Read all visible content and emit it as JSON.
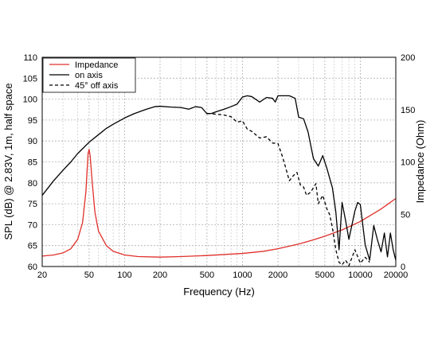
{
  "chart_data": {
    "type": "line",
    "xlabel": "Frequency (Hz)",
    "ylabel": "SPL (dB) @ 2.83V, 1m, half space",
    "y2label": "Impedance (Ohm)",
    "x_scale": "log",
    "xlim": [
      20,
      20000
    ],
    "ylim": [
      60,
      110
    ],
    "y2lim": [
      0,
      200
    ],
    "grid": true,
    "legend_position": "top-left",
    "x_ticks": [
      20,
      50,
      100,
      200,
      500,
      1000,
      2000,
      5000,
      10000,
      20000
    ],
    "x_tick_labels": [
      "20",
      "50",
      "100",
      "200",
      "500",
      "1000",
      "2000",
      "5000",
      "10000",
      "20000"
    ],
    "y_ticks": [
      60,
      65,
      70,
      75,
      80,
      85,
      90,
      95,
      100,
      105,
      110
    ],
    "y_tick_labels": [
      "60",
      "65",
      "70",
      "75",
      "80",
      "85",
      "90",
      "95",
      "100",
      "105",
      "110"
    ],
    "y2_ticks": [
      0,
      50,
      100,
      150,
      200
    ],
    "y2_tick_labels": [
      "0",
      "50",
      "100",
      "150",
      "200"
    ],
    "colors": {
      "impedance": "#e0302a",
      "on_axis": "#000000",
      "off_axis": "#000000",
      "grid": "#b0b0b0"
    },
    "series": [
      {
        "name": "Impedance",
        "axis": "right",
        "style": "solid",
        "points": [
          [
            20,
            10
          ],
          [
            25,
            11
          ],
          [
            30,
            13
          ],
          [
            35,
            17
          ],
          [
            40,
            26
          ],
          [
            44,
            42
          ],
          [
            47,
            72
          ],
          [
            49,
            108
          ],
          [
            50,
            112
          ],
          [
            51,
            106
          ],
          [
            53,
            82
          ],
          [
            56,
            52
          ],
          [
            60,
            34
          ],
          [
            70,
            20
          ],
          [
            80,
            14.5
          ],
          [
            100,
            11
          ],
          [
            130,
            9.5
          ],
          [
            200,
            9
          ],
          [
            300,
            9.5
          ],
          [
            500,
            10.5
          ],
          [
            1000,
            12.5
          ],
          [
            1500,
            14.5
          ],
          [
            2000,
            17
          ],
          [
            3000,
            21.5
          ],
          [
            4000,
            25.5
          ],
          [
            5000,
            29
          ],
          [
            7000,
            35
          ],
          [
            10000,
            43
          ],
          [
            15000,
            55
          ],
          [
            20000,
            65
          ]
        ]
      },
      {
        "name": "on axis",
        "axis": "left",
        "style": "solid",
        "points": [
          [
            20,
            77
          ],
          [
            25,
            80.5
          ],
          [
            30,
            83
          ],
          [
            35,
            85
          ],
          [
            40,
            87
          ],
          [
            50,
            89.7
          ],
          [
            60,
            91.5
          ],
          [
            70,
            93
          ],
          [
            80,
            94
          ],
          [
            100,
            95.5
          ],
          [
            120,
            96.5
          ],
          [
            150,
            97.5
          ],
          [
            180,
            98.2
          ],
          [
            200,
            98.3
          ],
          [
            250,
            98.1
          ],
          [
            300,
            98
          ],
          [
            350,
            97.6
          ],
          [
            400,
            98.2
          ],
          [
            450,
            98
          ],
          [
            500,
            96.5
          ],
          [
            550,
            96.6
          ],
          [
            600,
            97
          ],
          [
            700,
            97.6
          ],
          [
            800,
            98.2
          ],
          [
            900,
            98.8
          ],
          [
            1000,
            100.5
          ],
          [
            1100,
            100.8
          ],
          [
            1200,
            100.6
          ],
          [
            1400,
            99.3
          ],
          [
            1600,
            100.4
          ],
          [
            1800,
            100.2
          ],
          [
            1900,
            99.3
          ],
          [
            2000,
            100.8
          ],
          [
            2500,
            100.8
          ],
          [
            2800,
            100.2
          ],
          [
            3000,
            95.7
          ],
          [
            3300,
            95.3
          ],
          [
            3600,
            92.2
          ],
          [
            4000,
            85.8
          ],
          [
            4400,
            84
          ],
          [
            4800,
            86.5
          ],
          [
            5200,
            83.5
          ],
          [
            5800,
            78.8
          ],
          [
            6200,
            73
          ],
          [
            6600,
            64
          ],
          [
            7000,
            75.3
          ],
          [
            7500,
            71
          ],
          [
            8000,
            66.5
          ],
          [
            9000,
            73.3
          ],
          [
            9500,
            75.3
          ],
          [
            10000,
            74.8
          ],
          [
            11000,
            65.2
          ],
          [
            12000,
            61.5
          ],
          [
            13000,
            69.8
          ],
          [
            14000,
            66.3
          ],
          [
            15000,
            63.5
          ],
          [
            16000,
            68
          ],
          [
            17000,
            62.3
          ],
          [
            18000,
            68
          ],
          [
            19000,
            64
          ],
          [
            20000,
            61.5
          ]
        ]
      },
      {
        "name": "45° off axis",
        "axis": "left",
        "style": "dashed",
        "points": [
          [
            500,
            96.6
          ],
          [
            600,
            96.4
          ],
          [
            700,
            96.2
          ],
          [
            800,
            95.8
          ],
          [
            900,
            94.5
          ],
          [
            1000,
            94.8
          ],
          [
            1100,
            92.8
          ],
          [
            1200,
            92.3
          ],
          [
            1400,
            90.7
          ],
          [
            1600,
            91
          ],
          [
            1800,
            89.5
          ],
          [
            2000,
            89.4
          ],
          [
            2200,
            86
          ],
          [
            2500,
            80.5
          ],
          [
            2700,
            81.7
          ],
          [
            2900,
            82.5
          ],
          [
            3100,
            79.5
          ],
          [
            3300,
            79
          ],
          [
            3500,
            77
          ],
          [
            3800,
            77.8
          ],
          [
            4200,
            79.8
          ],
          [
            4400,
            75
          ],
          [
            4800,
            77
          ],
          [
            5200,
            73.8
          ],
          [
            5500,
            72.4
          ],
          [
            5800,
            69.2
          ],
          [
            6200,
            64
          ],
          [
            6600,
            61
          ],
          [
            7000,
            60.4
          ],
          [
            7500,
            61.5
          ],
          [
            8000,
            60.2
          ],
          [
            9000,
            64
          ],
          [
            10000,
            60.8
          ],
          [
            11000,
            62.2
          ],
          [
            12000,
            61
          ]
        ]
      }
    ]
  }
}
